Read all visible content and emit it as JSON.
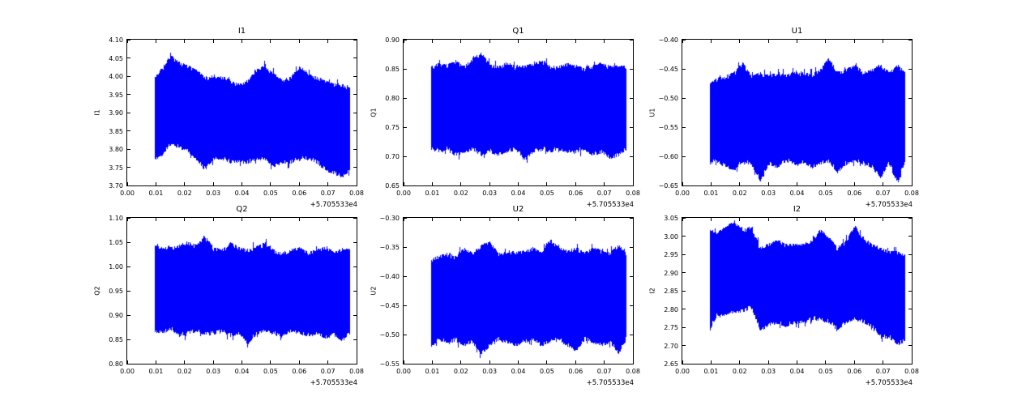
{
  "figure": {
    "background": "#ffffff",
    "spine_color": "#000000",
    "text_color": "#000000",
    "grid": false,
    "legend": null
  },
  "chart_data": [
    {
      "type": "line",
      "title": "I1",
      "ylabel": "I1",
      "line_color": "#0000ff",
      "xlim": [
        0.0,
        0.08
      ],
      "ylim": [
        3.7,
        4.1
      ],
      "xticks": [
        0.0,
        0.01,
        0.02,
        0.03,
        0.04,
        0.05,
        0.06,
        0.07,
        0.08
      ],
      "xtick_labels": [
        "0.00",
        "0.01",
        "0.02",
        "0.03",
        "0.04",
        "0.05",
        "0.06",
        "0.07",
        "0.08"
      ],
      "yticks": [
        3.7,
        3.75,
        3.8,
        3.85,
        3.9,
        3.95,
        4.0,
        4.05,
        4.1
      ],
      "ytick_labels": [
        "3.70",
        "3.75",
        "3.80",
        "3.85",
        "3.90",
        "3.95",
        "4.00",
        "4.05",
        "4.10"
      ],
      "x_offset_label": "+5.705533e4",
      "x_data_range": [
        0.0095,
        0.0775
      ],
      "envelope": {
        "x": [
          0.0095,
          0.012,
          0.015,
          0.018,
          0.021,
          0.024,
          0.027,
          0.03,
          0.033,
          0.036,
          0.039,
          0.042,
          0.045,
          0.048,
          0.051,
          0.054,
          0.057,
          0.06,
          0.063,
          0.066,
          0.069,
          0.072,
          0.075,
          0.0775
        ],
        "top": [
          4.0,
          4.02,
          4.06,
          4.04,
          4.03,
          4.02,
          4.0,
          4.0,
          4.0,
          3.99,
          3.98,
          3.99,
          4.02,
          4.03,
          4.01,
          3.99,
          4.0,
          4.03,
          4.01,
          4.0,
          3.99,
          3.98,
          3.98,
          3.97
        ],
        "bottom": [
          3.77,
          3.78,
          3.81,
          3.8,
          3.79,
          3.77,
          3.74,
          3.77,
          3.77,
          3.76,
          3.76,
          3.76,
          3.77,
          3.77,
          3.75,
          3.76,
          3.76,
          3.77,
          3.77,
          3.76,
          3.74,
          3.73,
          3.72,
          3.74
        ]
      }
    },
    {
      "type": "line",
      "title": "Q1",
      "ylabel": "Q1",
      "line_color": "#0000ff",
      "xlim": [
        0.0,
        0.08
      ],
      "ylim": [
        0.65,
        0.9
      ],
      "xticks": [
        0.0,
        0.01,
        0.02,
        0.03,
        0.04,
        0.05,
        0.06,
        0.07,
        0.08
      ],
      "xtick_labels": [
        "0.00",
        "0.01",
        "0.02",
        "0.03",
        "0.04",
        "0.05",
        "0.06",
        "0.07",
        "0.08"
      ],
      "yticks": [
        0.65,
        0.7,
        0.75,
        0.8,
        0.85,
        0.9
      ],
      "ytick_labels": [
        "0.65",
        "0.70",
        "0.75",
        "0.80",
        "0.85",
        "0.90"
      ],
      "x_offset_label": "+5.705533e4",
      "x_data_range": [
        0.0095,
        0.0775
      ],
      "envelope": {
        "x": [
          0.0095,
          0.012,
          0.015,
          0.018,
          0.021,
          0.024,
          0.027,
          0.03,
          0.033,
          0.036,
          0.039,
          0.042,
          0.045,
          0.048,
          0.051,
          0.054,
          0.057,
          0.06,
          0.063,
          0.066,
          0.069,
          0.072,
          0.075,
          0.0775
        ],
        "top": [
          0.855,
          0.86,
          0.858,
          0.865,
          0.855,
          0.87,
          0.878,
          0.858,
          0.855,
          0.862,
          0.855,
          0.856,
          0.86,
          0.865,
          0.856,
          0.855,
          0.86,
          0.856,
          0.852,
          0.856,
          0.862,
          0.855,
          0.856,
          0.856
        ],
        "bottom": [
          0.71,
          0.706,
          0.71,
          0.7,
          0.705,
          0.71,
          0.7,
          0.706,
          0.7,
          0.706,
          0.71,
          0.692,
          0.705,
          0.71,
          0.706,
          0.71,
          0.705,
          0.706,
          0.71,
          0.7,
          0.705,
          0.695,
          0.7,
          0.71
        ]
      }
    },
    {
      "type": "line",
      "title": "U1",
      "ylabel": "U1",
      "line_color": "#0000ff",
      "xlim": [
        0.0,
        0.08
      ],
      "ylim": [
        -0.65,
        -0.4
      ],
      "xticks": [
        0.0,
        0.01,
        0.02,
        0.03,
        0.04,
        0.05,
        0.06,
        0.07,
        0.08
      ],
      "xtick_labels": [
        "0.00",
        "0.01",
        "0.02",
        "0.03",
        "0.04",
        "0.05",
        "0.06",
        "0.07",
        "0.08"
      ],
      "yticks": [
        -0.65,
        -0.6,
        -0.55,
        -0.5,
        -0.45,
        -0.4
      ],
      "ytick_labels": [
        "−0.65",
        "−0.60",
        "−0.55",
        "−0.50",
        "−0.45",
        "−0.40"
      ],
      "x_offset_label": "+5.705533e4",
      "x_data_range": [
        0.0095,
        0.0775
      ],
      "envelope": {
        "x": [
          0.0095,
          0.012,
          0.015,
          0.018,
          0.021,
          0.024,
          0.027,
          0.03,
          0.033,
          0.036,
          0.039,
          0.042,
          0.045,
          0.048,
          0.051,
          0.054,
          0.057,
          0.06,
          0.063,
          0.066,
          0.069,
          0.072,
          0.075,
          0.0775
        ],
        "top": [
          -0.475,
          -0.465,
          -0.462,
          -0.455,
          -0.438,
          -0.462,
          -0.455,
          -0.46,
          -0.455,
          -0.458,
          -0.455,
          -0.456,
          -0.458,
          -0.45,
          -0.428,
          -0.455,
          -0.45,
          -0.442,
          -0.455,
          -0.45,
          -0.442,
          -0.455,
          -0.442,
          -0.455
        ],
        "bottom": [
          -0.615,
          -0.61,
          -0.62,
          -0.625,
          -0.61,
          -0.615,
          -0.644,
          -0.615,
          -0.62,
          -0.61,
          -0.615,
          -0.612,
          -0.62,
          -0.615,
          -0.61,
          -0.63,
          -0.615,
          -0.61,
          -0.615,
          -0.62,
          -0.638,
          -0.615,
          -0.648,
          -0.61
        ]
      }
    },
    {
      "type": "line",
      "title": "Q2",
      "ylabel": "Q2",
      "line_color": "#0000ff",
      "xlim": [
        0.0,
        0.08
      ],
      "ylim": [
        0.8,
        1.1
      ],
      "xticks": [
        0.0,
        0.01,
        0.02,
        0.03,
        0.04,
        0.05,
        0.06,
        0.07,
        0.08
      ],
      "xtick_labels": [
        "0.00",
        "0.01",
        "0.02",
        "0.03",
        "0.04",
        "0.05",
        "0.06",
        "0.07",
        "0.08"
      ],
      "yticks": [
        0.8,
        0.85,
        0.9,
        0.95,
        1.0,
        1.05,
        1.1
      ],
      "ytick_labels": [
        "0.80",
        "0.85",
        "0.90",
        "0.95",
        "1.00",
        "1.05",
        "1.10"
      ],
      "x_offset_label": "+5.705533e4",
      "x_data_range": [
        0.0095,
        0.0775
      ],
      "envelope": {
        "x": [
          0.0095,
          0.012,
          0.015,
          0.018,
          0.021,
          0.024,
          0.027,
          0.03,
          0.033,
          0.036,
          0.039,
          0.042,
          0.045,
          0.048,
          0.051,
          0.054,
          0.057,
          0.06,
          0.063,
          0.066,
          0.069,
          0.072,
          0.075,
          0.0775
        ],
        "top": [
          1.045,
          1.04,
          1.042,
          1.045,
          1.052,
          1.045,
          1.063,
          1.04,
          1.036,
          1.05,
          1.04,
          1.036,
          1.042,
          1.05,
          1.035,
          1.03,
          1.036,
          1.04,
          1.03,
          1.036,
          1.042,
          1.03,
          1.04,
          1.036
        ],
        "bottom": [
          0.865,
          0.86,
          0.87,
          0.855,
          0.86,
          0.865,
          0.856,
          0.86,
          0.865,
          0.855,
          0.86,
          0.84,
          0.86,
          0.865,
          0.86,
          0.856,
          0.865,
          0.86,
          0.855,
          0.86,
          0.85,
          0.856,
          0.846,
          0.86
        ]
      }
    },
    {
      "type": "line",
      "title": "U2",
      "ylabel": "U2",
      "line_color": "#0000ff",
      "xlim": [
        0.0,
        0.08
      ],
      "ylim": [
        -0.55,
        -0.3
      ],
      "xticks": [
        0.0,
        0.01,
        0.02,
        0.03,
        0.04,
        0.05,
        0.06,
        0.07,
        0.08
      ],
      "xtick_labels": [
        "0.00",
        "0.01",
        "0.02",
        "0.03",
        "0.04",
        "0.05",
        "0.06",
        "0.07",
        "0.08"
      ],
      "yticks": [
        -0.55,
        -0.5,
        -0.45,
        -0.4,
        -0.35,
        -0.3
      ],
      "ytick_labels": [
        "−0.55",
        "−0.50",
        "−0.45",
        "−0.40",
        "−0.35",
        "−0.30"
      ],
      "x_offset_label": "+5.705533e4",
      "x_data_range": [
        0.0095,
        0.0775
      ],
      "envelope": {
        "x": [
          0.0095,
          0.012,
          0.015,
          0.018,
          0.021,
          0.024,
          0.027,
          0.03,
          0.033,
          0.036,
          0.039,
          0.042,
          0.045,
          0.048,
          0.051,
          0.054,
          0.057,
          0.06,
          0.063,
          0.066,
          0.069,
          0.072,
          0.075,
          0.0775
        ],
        "top": [
          -0.37,
          -0.365,
          -0.36,
          -0.365,
          -0.35,
          -0.36,
          -0.345,
          -0.34,
          -0.36,
          -0.355,
          -0.358,
          -0.355,
          -0.35,
          -0.358,
          -0.336,
          -0.35,
          -0.355,
          -0.35,
          -0.358,
          -0.35,
          -0.355,
          -0.358,
          -0.345,
          -0.36
        ],
        "bottom": [
          -0.525,
          -0.51,
          -0.515,
          -0.512,
          -0.52,
          -0.515,
          -0.535,
          -0.52,
          -0.51,
          -0.515,
          -0.52,
          -0.515,
          -0.51,
          -0.52,
          -0.515,
          -0.512,
          -0.52,
          -0.53,
          -0.51,
          -0.515,
          -0.52,
          -0.515,
          -0.535,
          -0.51
        ]
      }
    },
    {
      "type": "line",
      "title": "I2",
      "ylabel": "I2",
      "line_color": "#0000ff",
      "xlim": [
        0.0,
        0.08
      ],
      "ylim": [
        2.65,
        3.05
      ],
      "xticks": [
        0.0,
        0.01,
        0.02,
        0.03,
        0.04,
        0.05,
        0.06,
        0.07,
        0.08
      ],
      "xtick_labels": [
        "0.00",
        "0.01",
        "0.02",
        "0.03",
        "0.04",
        "0.05",
        "0.06",
        "0.07",
        "0.08"
      ],
      "yticks": [
        2.65,
        2.7,
        2.75,
        2.8,
        2.85,
        2.9,
        2.95,
        3.0,
        3.05
      ],
      "ytick_labels": [
        "2.65",
        "2.70",
        "2.75",
        "2.80",
        "2.85",
        "2.90",
        "2.95",
        "3.00",
        "3.05"
      ],
      "x_offset_label": "+5.705533e4",
      "x_data_range": [
        0.0095,
        0.0775
      ],
      "envelope": {
        "x": [
          0.0095,
          0.012,
          0.015,
          0.018,
          0.021,
          0.024,
          0.027,
          0.03,
          0.033,
          0.036,
          0.039,
          0.042,
          0.045,
          0.048,
          0.051,
          0.054,
          0.057,
          0.06,
          0.063,
          0.066,
          0.069,
          0.072,
          0.075,
          0.0775
        ],
        "top": [
          3.02,
          3.01,
          3.03,
          3.04,
          3.02,
          3.03,
          2.97,
          2.98,
          2.99,
          2.98,
          2.98,
          2.98,
          2.99,
          3.02,
          3.0,
          2.97,
          2.99,
          3.03,
          3.0,
          2.98,
          2.97,
          2.96,
          2.96,
          2.95
        ],
        "bottom": [
          2.74,
          2.78,
          2.78,
          2.79,
          2.79,
          2.8,
          2.74,
          2.75,
          2.76,
          2.75,
          2.76,
          2.76,
          2.77,
          2.77,
          2.76,
          2.74,
          2.76,
          2.77,
          2.76,
          2.75,
          2.72,
          2.72,
          2.7,
          2.71
        ]
      }
    }
  ]
}
